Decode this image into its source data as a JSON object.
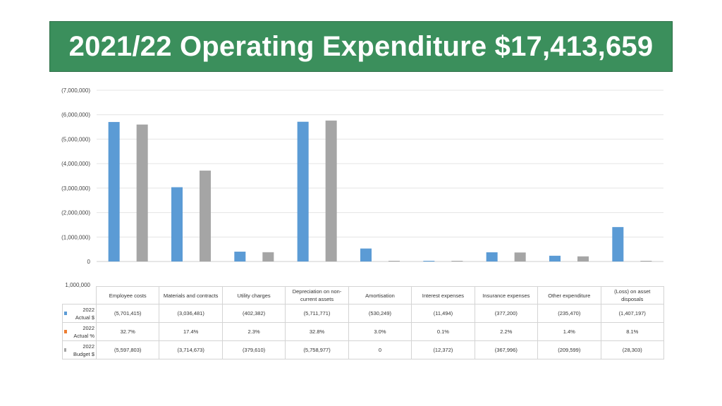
{
  "title": "2021/22 Operating Expenditure $17,413,659",
  "colors": {
    "banner": "#3b8f5c",
    "actual": "#5b9bd5",
    "actual_pct": "#ed7d31",
    "budget": "#a5a5a5"
  },
  "chart_data": {
    "type": "bar",
    "categories": [
      "Employee costs",
      "Materials and contracts",
      "Utility charges",
      "Depreciation on non-current assets",
      "Amortisation",
      "Interest expenses",
      "Insurance expenses",
      "Other expenditure",
      "(Loss) on asset disposals"
    ],
    "series": [
      {
        "name": "2022 Actual $",
        "values": [
          -5701415,
          -3036481,
          -402382,
          -5711771,
          -530249,
          -11494,
          -377200,
          -235470,
          -1407197
        ],
        "labels": [
          "(5,701,415)",
          "(3,036,481)",
          "(402,382)",
          "(5,711,771)",
          "(530,249)",
          "(11,494)",
          "(377,200)",
          "(235,470)",
          "(1,407,197)"
        ]
      },
      {
        "name": "2022 Actual %",
        "values": [
          32.7,
          17.4,
          2.3,
          32.8,
          3.0,
          0.1,
          2.2,
          1.4,
          8.1
        ],
        "labels": [
          "32.7%",
          "17.4%",
          "2.3%",
          "32.8%",
          "3.0%",
          "0.1%",
          "2.2%",
          "1.4%",
          "8.1%"
        ]
      },
      {
        "name": "2022 Budget $",
        "values": [
          -5597803,
          -3714673,
          -379610,
          -5758977,
          0,
          -12372,
          -367996,
          -209599,
          -28303
        ],
        "labels": [
          "(5,597,803)",
          "(3,714,673)",
          "(379,610)",
          "(5,758,977)",
          "0",
          "(12,372)",
          "(367,996)",
          "(209,599)",
          "(28,303)"
        ]
      }
    ],
    "y_axis": {
      "reversed": true,
      "ylim": [
        -7000000,
        1000000
      ],
      "tick_values": [
        -7000000,
        -6000000,
        -5000000,
        -4000000,
        -3000000,
        -2000000,
        -1000000,
        0,
        1000000
      ],
      "tick_labels": [
        "(7,000,000)",
        "(6,000,000)",
        "(5,000,000)",
        "(4,000,000)",
        "(3,000,000)",
        "(2,000,000)",
        "(1,000,000)",
        "0",
        "1,000,000"
      ]
    },
    "grid": true,
    "legend": "data-table"
  }
}
